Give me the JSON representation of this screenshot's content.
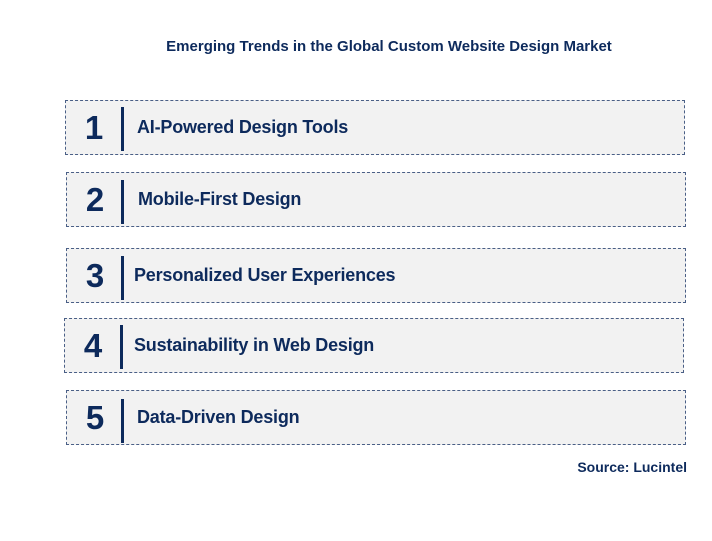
{
  "title": "Emerging Trends in the Global Custom Website Design Market",
  "trends": [
    {
      "number": "1",
      "label": "AI-Powered Design Tools"
    },
    {
      "number": "2",
      "label": "Mobile-First Design"
    },
    {
      "number": "3",
      "label": "Personalized User Experiences"
    },
    {
      "number": "4",
      "label": "Sustainability in Web Design"
    },
    {
      "number": "5",
      "label": "Data-Driven Design"
    }
  ],
  "source": "Source: Lucintel",
  "colors": {
    "text": "#0d2a5c",
    "box_fill": "#f2f2f2",
    "box_border": "#4a5f86"
  }
}
